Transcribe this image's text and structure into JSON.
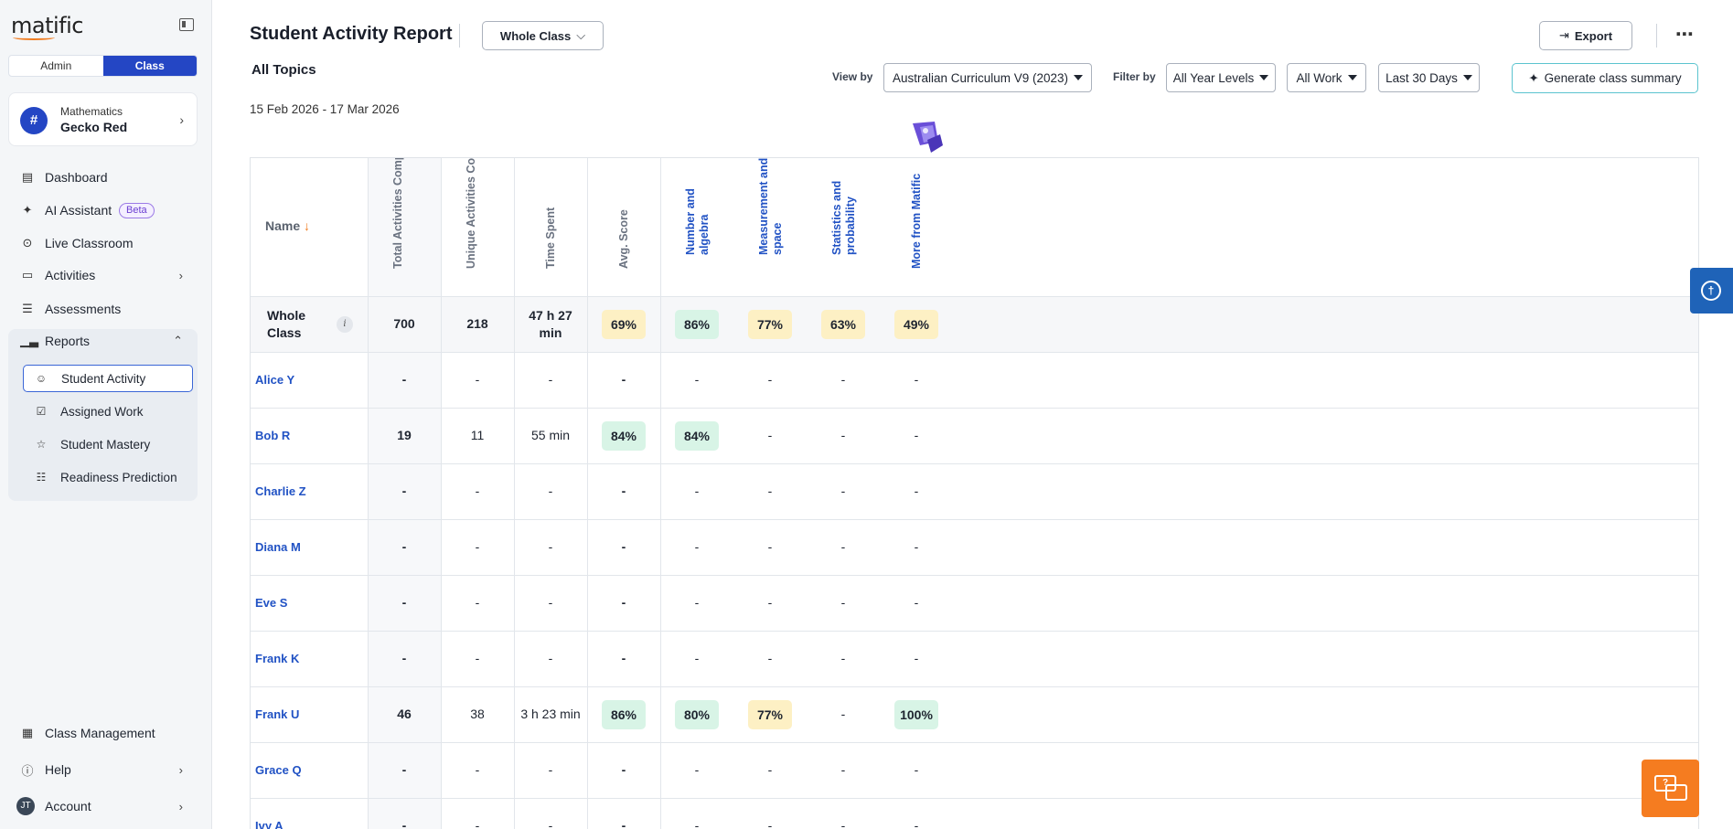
{
  "app": {
    "logo_text": "matific"
  },
  "sidebar": {
    "segments": [
      "Admin",
      "Class"
    ],
    "active_segment": "Class",
    "class_card": {
      "subject": "Mathematics",
      "name": "Gecko Red"
    },
    "nav": [
      {
        "label": "Dashboard",
        "icon": "dashboard-icon"
      },
      {
        "label": "AI Assistant",
        "icon": "sparkle-icon",
        "badge": "Beta"
      },
      {
        "label": "Live Classroom",
        "icon": "broadcast-icon"
      },
      {
        "label": "Activities",
        "icon": "laptop-icon"
      },
      {
        "label": "Assessments",
        "icon": "checklist-icon"
      },
      {
        "label": "Reports",
        "icon": "bar-chart-icon"
      }
    ],
    "report_items": [
      {
        "label": "Student Activity",
        "icon": "user-check-icon"
      },
      {
        "label": "Assigned Work",
        "icon": "calendar-check-icon"
      },
      {
        "label": "Student Mastery",
        "icon": "star-icon"
      },
      {
        "label": "Readiness Prediction",
        "icon": "toggles-icon"
      }
    ],
    "bottom": [
      {
        "label": "Class Management",
        "icon": "class-icon"
      },
      {
        "label": "Help",
        "icon": "help-icon"
      },
      {
        "label": "Account",
        "icon": "account-avatar",
        "avatar_initials": "JT"
      }
    ]
  },
  "header": {
    "title": "Student Activity Report",
    "scope_dropdown": "Whole Class",
    "export_label": "Export",
    "topics_label": "All Topics",
    "date_range": "15 Feb 2026 - 17 Mar 2026",
    "view_by_label": "View by",
    "view_by_value": "Australian Curriculum V9 (2023)",
    "filter_by_label": "Filter by",
    "filters": [
      "All Year Levels",
      "All Work",
      "Last 30 Days"
    ],
    "generate_label": "Generate class summary"
  },
  "table": {
    "name_header": "Name",
    "columns": [
      "Total Activities Completed",
      "Unique Activities Completed",
      "Time Spent",
      "Avg. Score",
      "Number and algebra",
      "Measurement and space",
      "Statistics and probability",
      "More from Matific"
    ],
    "whole_class": {
      "label": "Whole Class",
      "total": "700",
      "unique": "218",
      "time": "47 h 27 min",
      "avg": "69%",
      "number": "86%",
      "measurement": "77%",
      "statistics": "63%",
      "more": "49%"
    },
    "students": [
      {
        "name": "Alice Y",
        "total": "-",
        "unique": "-",
        "time": "-",
        "avg": "-",
        "number": "-",
        "measurement": "-",
        "statistics": "-",
        "more": "-"
      },
      {
        "name": "Bob R",
        "total": "19",
        "unique": "11",
        "time": "55 min",
        "avg": "84%",
        "number": "84%",
        "measurement": "-",
        "statistics": "-",
        "more": "-"
      },
      {
        "name": "Charlie Z",
        "total": "-",
        "unique": "-",
        "time": "-",
        "avg": "-",
        "number": "-",
        "measurement": "-",
        "statistics": "-",
        "more": "-"
      },
      {
        "name": "Diana M",
        "total": "-",
        "unique": "-",
        "time": "-",
        "avg": "-",
        "number": "-",
        "measurement": "-",
        "statistics": "-",
        "more": "-"
      },
      {
        "name": "Eve S",
        "total": "-",
        "unique": "-",
        "time": "-",
        "avg": "-",
        "number": "-",
        "measurement": "-",
        "statistics": "-",
        "more": "-"
      },
      {
        "name": "Frank K",
        "total": "-",
        "unique": "-",
        "time": "-",
        "avg": "-",
        "number": "-",
        "measurement": "-",
        "statistics": "-",
        "more": "-"
      },
      {
        "name": "Frank U",
        "total": "46",
        "unique": "38",
        "time": "3 h 23 min",
        "avg": "86%",
        "number": "80%",
        "measurement": "77%",
        "statistics": "-",
        "more": "100%"
      },
      {
        "name": "Grace Q",
        "total": "-",
        "unique": "-",
        "time": "-",
        "avg": "-",
        "number": "-",
        "measurement": "-",
        "statistics": "-",
        "more": "-"
      },
      {
        "name": "Ivy A",
        "total": "-",
        "unique": "-",
        "time": "-",
        "avg": "-",
        "number": "-",
        "measurement": "-",
        "statistics": "-",
        "more": "-"
      }
    ]
  },
  "colors": {
    "primary": "#2446c4",
    "link": "#2152c4",
    "accent_orange": "#f57c20",
    "good": "#d8f4e6",
    "mid": "#fdf0c4",
    "teal_border": "#5bc4cf"
  },
  "floating": {
    "accessibility_icon": "accessibility-icon",
    "chat_icon": "chat-icon"
  }
}
